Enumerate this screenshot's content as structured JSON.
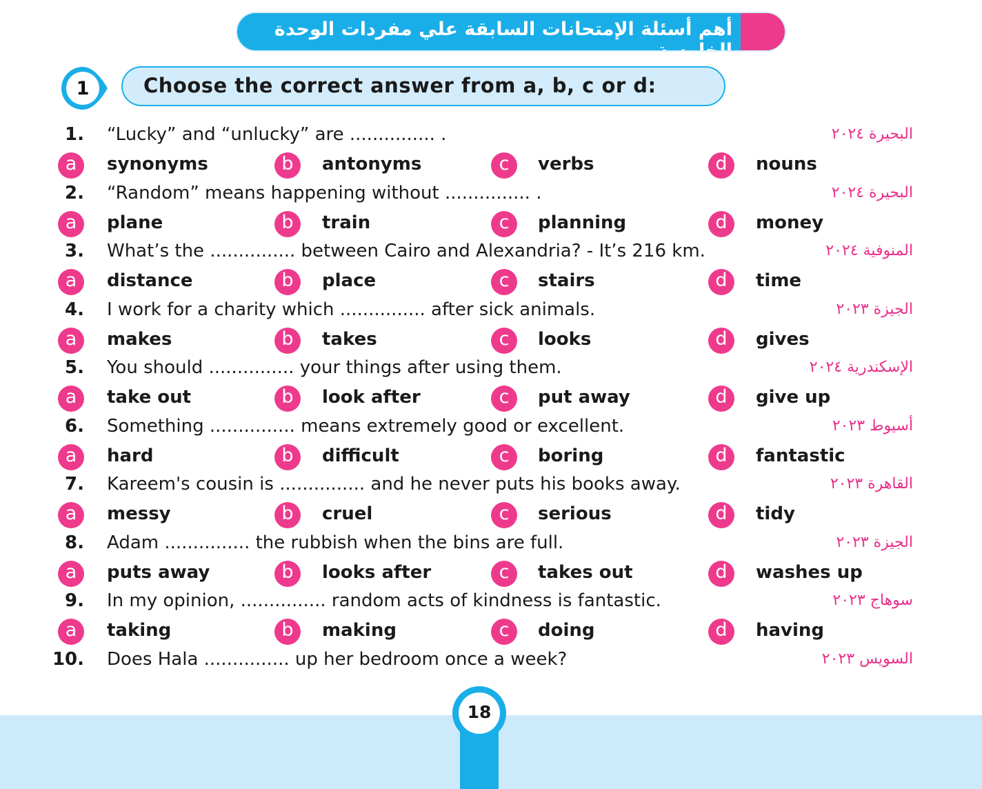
{
  "header": {
    "title": "أهم أسئلة الإمتحانات السابقة علي مفردات الوحدة الخامسة"
  },
  "section": {
    "number": "1",
    "instruction": "Choose the correct answer from a, b, c or d:"
  },
  "option_letters": [
    "a",
    "b",
    "c",
    "d"
  ],
  "colors": {
    "accent_blue": "#1aaee8",
    "accent_pink": "#ee3a8c",
    "source_text": "#e8308a",
    "light_blue": "#cdeafb"
  },
  "questions": [
    {
      "num": "1.",
      "text": "“Lucky” and “unlucky” are ............... .",
      "source": "البحيرة ٢٠٢٤",
      "options": [
        "synonyms",
        "antonyms",
        "verbs",
        "nouns"
      ]
    },
    {
      "num": "2.",
      "text": "“Random” means happening without ............... .",
      "source": "البحيرة ٢٠٢٤",
      "options": [
        "plane",
        "train",
        "planning",
        "money"
      ]
    },
    {
      "num": "3.",
      "text": "What’s the ............... between Cairo and Alexandria? - It’s 216 km.",
      "source": "المنوفية ٢٠٢٤",
      "options": [
        "distance",
        "place",
        "stairs",
        "time"
      ]
    },
    {
      "num": "4.",
      "text": "I work for a charity which ............... after sick animals.",
      "source": "الجيزة ٢٠٢٣",
      "options": [
        "makes",
        "takes",
        "looks",
        "gives"
      ]
    },
    {
      "num": "5.",
      "text": "You should ............... your things after using them.",
      "source": "الإسكندرية ٢٠٢٤",
      "options": [
        "take out",
        "look after",
        "put away",
        "give up"
      ]
    },
    {
      "num": "6.",
      "text": "Something ............... means extremely good or excellent.",
      "source": "أسيوط ٢٠٢٣",
      "options": [
        "hard",
        "difficult",
        "boring",
        "fantastic"
      ]
    },
    {
      "num": "7.",
      "text": "Kareem's cousin is ............... and he never puts his books away.",
      "source": "القاهرة ٢٠٢٣",
      "options": [
        "messy",
        "cruel",
        "serious",
        "tidy"
      ]
    },
    {
      "num": "8.",
      "text": "Adam ............... the rubbish when the bins are full.",
      "source": "الجيزة ٢٠٢٣",
      "options": [
        "puts away",
        "looks after",
        "takes out",
        "washes up"
      ]
    },
    {
      "num": "9.",
      "text": "In my opinion, ............... random acts of kindness is fantastic.",
      "source": "سوهاج ٢٠٢٣",
      "options": [
        "taking",
        "making",
        "doing",
        "having"
      ]
    },
    {
      "num": "10.",
      "text": "Does Hala ............... up her bedroom once a week?",
      "source": "السويس ٢٠٢٣",
      "options": []
    }
  ],
  "footer": {
    "page_number": "18"
  }
}
